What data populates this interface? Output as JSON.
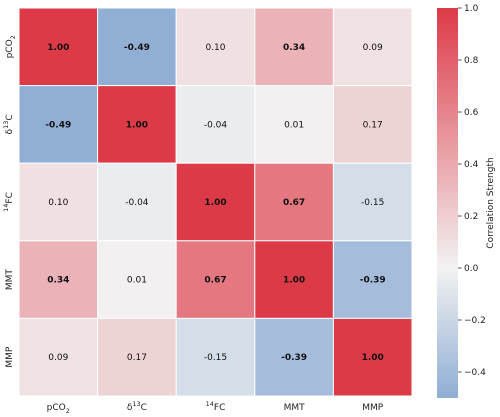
{
  "chart_data": {
    "type": "heatmap",
    "rows": [
      {
        "label": "pCO",
        "sub": "2",
        "sup": ""
      },
      {
        "label": "C",
        "sub": "",
        "sup": "13",
        "prefix": "δ"
      },
      {
        "label": "F",
        "sub": "",
        "sup": "14",
        "suffix": "C"
      },
      {
        "label": "MMT",
        "sub": "",
        "sup": ""
      },
      {
        "label": "MMP",
        "sub": "",
        "sup": ""
      }
    ],
    "columns": [
      {
        "label": "pCO",
        "sub": "2",
        "sup": ""
      },
      {
        "label": "C",
        "sub": "",
        "sup": "13",
        "prefix": "δ"
      },
      {
        "label": "F",
        "sub": "",
        "sup": "14",
        "suffix": "C"
      },
      {
        "label": "MMT",
        "sub": "",
        "sup": ""
      },
      {
        "label": "MMP",
        "sub": "",
        "sup": ""
      }
    ],
    "values": [
      [
        1.0,
        -0.49,
        0.1,
        0.34,
        0.09
      ],
      [
        -0.49,
        1.0,
        -0.04,
        0.01,
        0.17
      ],
      [
        0.1,
        -0.04,
        1.0,
        0.67,
        -0.15
      ],
      [
        0.34,
        0.01,
        0.67,
        1.0,
        -0.39
      ],
      [
        0.09,
        0.17,
        -0.15,
        -0.39,
        1.0
      ]
    ],
    "value_labels": [
      [
        "1.00",
        "-0.49",
        "0.10",
        "0.34",
        "0.09"
      ],
      [
        "-0.49",
        "1.00",
        "-0.04",
        "0.01",
        "0.17"
      ],
      [
        "0.10",
        "-0.04",
        "1.00",
        "0.67",
        "-0.15"
      ],
      [
        "0.34",
        "0.01",
        "0.67",
        "1.00",
        "-0.39"
      ],
      [
        "0.09",
        "0.17",
        "-0.15",
        "-0.39",
        "1.00"
      ]
    ],
    "bold_threshold": 0.3,
    "vmin": -0.5,
    "vmax": 1.0,
    "colorbar": {
      "label": "Correlation Strength",
      "ticks": [
        -0.4,
        -0.2,
        0.0,
        0.2,
        0.4,
        0.6,
        0.8,
        1.0
      ],
      "tick_labels": [
        "−0.4",
        "−0.2",
        "0.0",
        "0.2",
        "0.4",
        "0.6",
        "0.8",
        "1.0"
      ]
    },
    "colors": {
      "negative": "#8faed3",
      "neutral": "#f2f2f2",
      "positive": "#dd3a48"
    }
  }
}
